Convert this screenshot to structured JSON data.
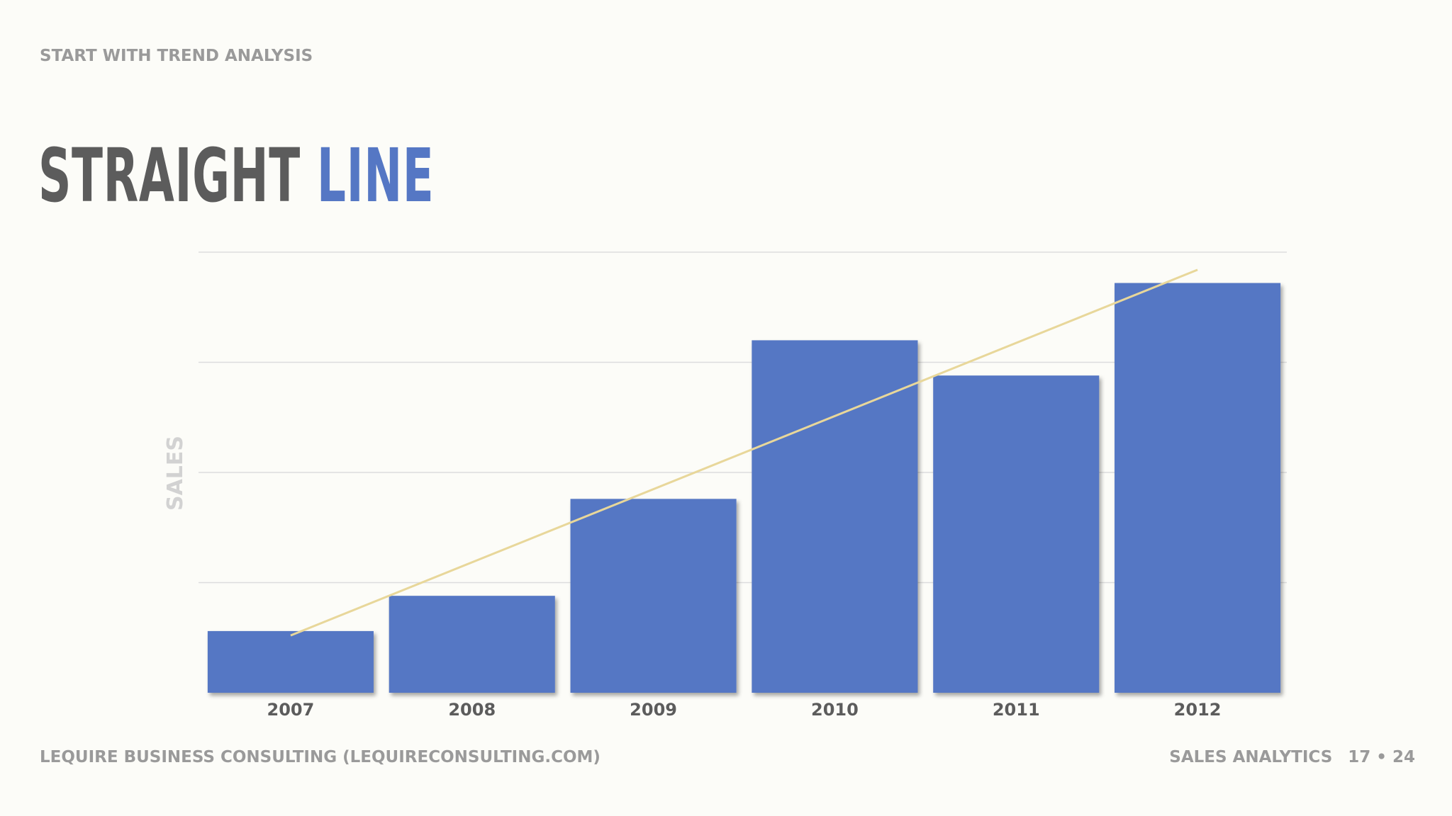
{
  "slide": {
    "eyebrow": "START WITH TREND ANALYSIS",
    "title_main": "STRAIGHT",
    "title_accent": "LINE",
    "footer_left": "LEQUIRE BUSINESS CONSULTING (LEQUIRECONSULTING.COM)",
    "footer_section": "SALES ANALYTICS",
    "page_current": "17",
    "page_sep": "•",
    "page_total": "24"
  },
  "colors": {
    "bar": "#5577c4",
    "trend": "#e8d79a",
    "grid": "#dddddd",
    "title": "#5c5c5c",
    "accent": "#5577c4"
  },
  "chart_data": {
    "type": "bar",
    "categories": [
      "2007",
      "2008",
      "2009",
      "2010",
      "2011",
      "2012"
    ],
    "values": [
      14,
      22,
      44,
      80,
      72,
      93
    ],
    "ylabel": "SALES",
    "xlabel": "",
    "ylim": [
      0,
      100
    ],
    "grid": true,
    "trendline": {
      "type": "linear",
      "start": 13,
      "end": 96
    }
  }
}
